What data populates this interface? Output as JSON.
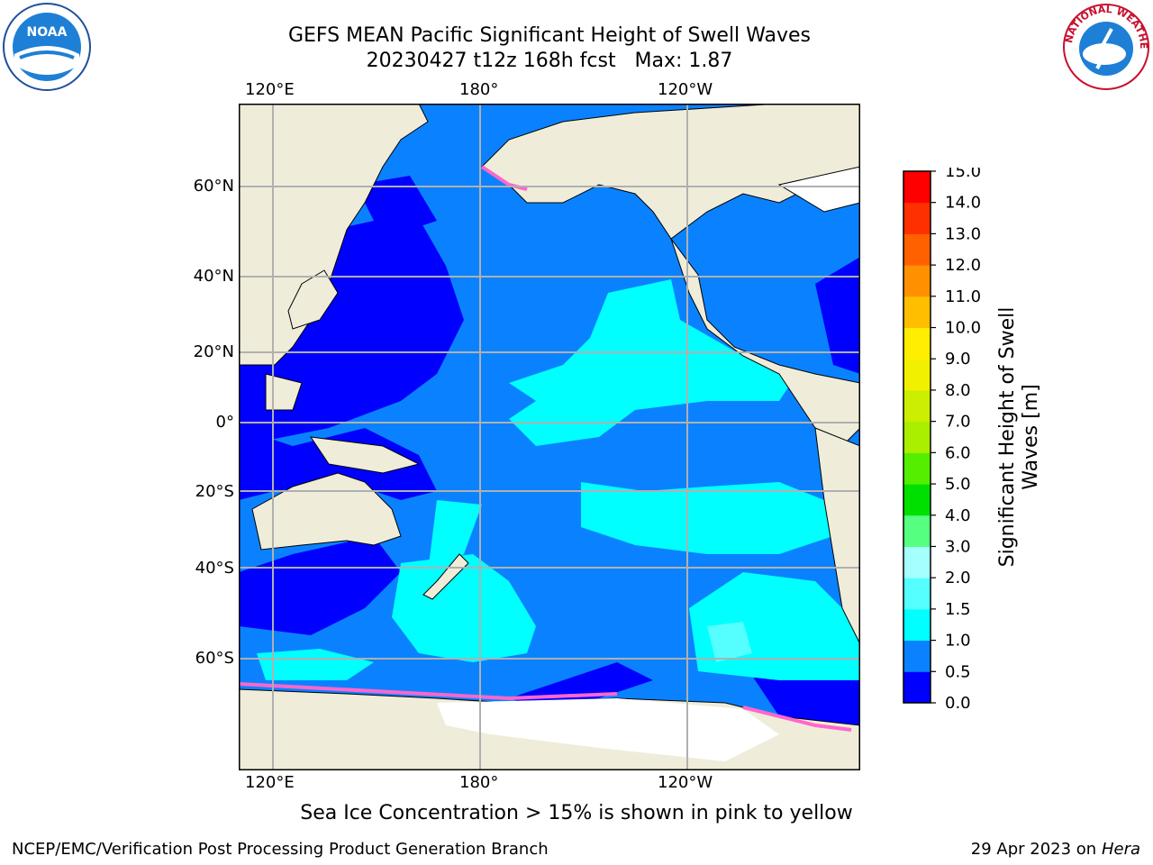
{
  "header": {
    "title_line1": "GEFS MEAN Pacific Significant Height of Swell Waves",
    "title_line2": "20230427 t12z 168h fcst   Max: 1.87"
  },
  "logos": {
    "left_text": "NOAA",
    "right_text": "NATIONAL WEATHER SERVICE"
  },
  "map": {
    "lon_labels_top": [
      "120°E",
      "180°",
      "120°W"
    ],
    "lon_labels_bottom": [
      "120°E",
      "180°",
      "120°W"
    ],
    "lat_labels": [
      "60°N",
      "40°N",
      "20°N",
      "0°",
      "20°S",
      "40°S",
      "60°S"
    ]
  },
  "colorbar": {
    "label_line1": "Significant Height of Swell",
    "label_line2": "Waves [m]",
    "ticks": [
      "0.0",
      "0.5",
      "1.0",
      "1.5",
      "2.0",
      "3.0",
      "4.0",
      "5.0",
      "6.0",
      "7.0",
      "8.0",
      "9.0",
      "10.0",
      "11.0",
      "12.0",
      "13.0",
      "14.0",
      "15.0"
    ],
    "colors": [
      "#0000ff",
      "#0a82ff",
      "#00ffff",
      "#55ffff",
      "#a5ffff",
      "#55ff80",
      "#00e000",
      "#55ee00",
      "#aaee00",
      "#ccee00",
      "#f0f000",
      "#ffee00",
      "#ffbf00",
      "#ff9000",
      "#ff6000",
      "#ff3000",
      "#ff0000"
    ]
  },
  "notes": {
    "sea_ice": "Sea Ice Concentration > 15% is shown in pink to yellow"
  },
  "footer": {
    "left": "NCEP/EMC/Verification Post Processing Product Generation Branch",
    "right_prefix": "29 Apr 2023 on ",
    "right_host": "Hera"
  }
}
